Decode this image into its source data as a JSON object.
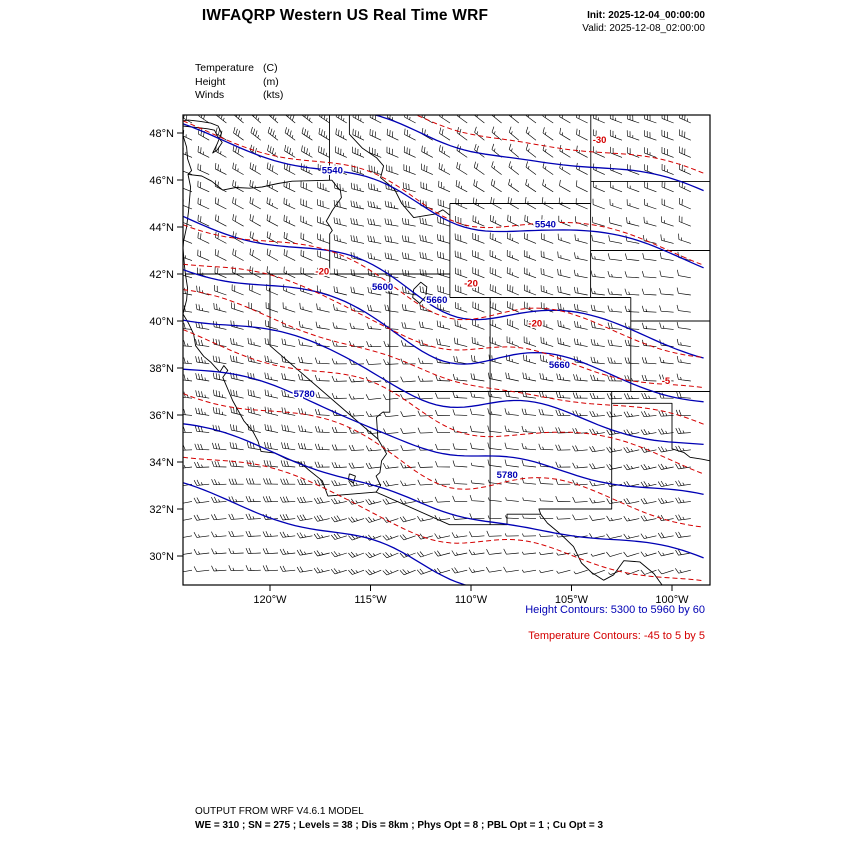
{
  "header": {
    "title": "IWFAQRP Western US Real Time WRF",
    "init_label": "Init: 2025-12-04_00:00:00",
    "valid_label": "Valid: 2025-12-08_02:00:00"
  },
  "fields": [
    {
      "name": "Temperature",
      "unit": "(C)"
    },
    {
      "name": "Height",
      "unit": "(m)"
    },
    {
      "name": "Winds",
      "unit": "(kts)"
    }
  ],
  "legend": {
    "height": "Height Contours: 5300 to 5960 by 60",
    "temperature": "Temperature Contours: -45 to 5 by 5"
  },
  "footer": {
    "line1": "OUTPUT FROM WRF V4.6.1 MODEL",
    "line2": "WE = 310 ; SN = 275 ; Levels = 38 ; Dis = 8km ; Phys Opt = 8 ; PBL Opt = 1 ; Cu Opt = 3"
  },
  "colors": {
    "height_contour": "#0000b4",
    "temperature_contour": "#d40000",
    "map_outline": "#000000",
    "wind_barb": "#000000"
  },
  "chart_data": {
    "type": "contour-map",
    "region": "Western US",
    "projection": {
      "lon_min": -124.33,
      "lon_max": -98.11,
      "lat_min": 28.77,
      "lat_max": 48.77
    },
    "axes": {
      "lat_ticks": [
        {
          "value": 48,
          "label": "48°N"
        },
        {
          "value": 46,
          "label": "46°N"
        },
        {
          "value": 44,
          "label": "44°N"
        },
        {
          "value": 42,
          "label": "42°N"
        },
        {
          "value": 40,
          "label": "40°N"
        },
        {
          "value": 38,
          "label": "38°N"
        },
        {
          "value": 36,
          "label": "36°N"
        },
        {
          "value": 34,
          "label": "34°N"
        },
        {
          "value": 32,
          "label": "32°N"
        },
        {
          "value": 30,
          "label": "30°N"
        }
      ],
      "lon_ticks": [
        {
          "value": -120,
          "label": "120°W"
        },
        {
          "value": -115,
          "label": "115°W"
        },
        {
          "value": -110,
          "label": "110°W"
        },
        {
          "value": -105,
          "label": "105°W"
        },
        {
          "value": -100,
          "label": "100°W"
        }
      ]
    },
    "contour_shape": {
      "slope_deg_per_lon": 0.22,
      "trough_center_lon": -111,
      "trough_width": 3.2,
      "trough_amp": 1.0,
      "wiggle_amp": 0.3
    },
    "height_contours": {
      "units": "m",
      "min": 5300,
      "max": 5960,
      "interval": 60,
      "levels": [
        {
          "value": 5480,
          "lat_at_center": 48.3
        },
        {
          "value": 5540,
          "lat_at_center": 45.3
        },
        {
          "value": 5600,
          "lat_at_center": 41.6
        },
        {
          "value": 5660,
          "lat_at_center": 39.6
        },
        {
          "value": 5720,
          "lat_at_center": 37.5
        },
        {
          "value": 5780,
          "lat_at_center": 35.2
        },
        {
          "value": 5840,
          "lat_at_center": 32.6
        },
        {
          "value": 5900,
          "lat_at_center": 30.0
        }
      ],
      "labels": [
        {
          "text": "5540",
          "lon": -116.9,
          "lat": 46.4
        },
        {
          "text": "5540",
          "lon": -106.3,
          "lat": 44.1
        },
        {
          "text": "5600",
          "lon": -114.4,
          "lat": 41.45
        },
        {
          "text": "5660",
          "lon": -111.7,
          "lat": 40.9
        },
        {
          "text": "5660",
          "lon": -105.6,
          "lat": 38.13
        },
        {
          "text": "5780",
          "lon": -118.3,
          "lat": 36.9
        },
        {
          "text": "5780",
          "lon": -108.2,
          "lat": 33.45
        }
      ]
    },
    "temperature_contours": {
      "units": "C",
      "min": -45,
      "max": 5,
      "interval": 5,
      "levels": [
        {
          "value": -30,
          "lat_at_center": 49.0
        },
        {
          "value": -25,
          "lat_at_center": 45.5
        },
        {
          "value": -20,
          "lat_at_center": 41.5
        },
        {
          "value": -15,
          "lat_at_center": 39.8
        },
        {
          "value": -10,
          "lat_at_center": 38.3
        },
        {
          "value": -5,
          "lat_at_center": 36.6
        },
        {
          "value": 0,
          "lat_at_center": 34.3
        },
        {
          "value": 5,
          "lat_at_center": 31.6
        }
      ],
      "labels": [
        {
          "text": "-30",
          "lon": -103.6,
          "lat": 47.7
        },
        {
          "text": "-20",
          "lon": -117.4,
          "lat": 42.1
        },
        {
          "text": "-20",
          "lon": -110.0,
          "lat": 41.6
        },
        {
          "text": "-20",
          "lon": -106.8,
          "lat": 39.9
        },
        {
          "text": "-5",
          "lon": -100.3,
          "lat": 37.45
        }
      ]
    },
    "wind_barbs": {
      "units": "kts",
      "grid_spacing_px": 17.2,
      "base_direction_deg": 302,
      "dir_lat_gradient": 2.3,
      "base_speed_kts": 27
    },
    "state_outlines": [
      [
        [
          -124.33,
          48.3
        ],
        [
          -123.5,
          48.22
        ],
        [
          -123.1,
          48.18
        ],
        [
          -122.76,
          48.12
        ],
        [
          -122.6,
          47.85
        ],
        [
          -122.38,
          47.6
        ],
        [
          -122.62,
          47.28
        ],
        [
          -122.85,
          47.15
        ],
        [
          -122.62,
          47.55
        ],
        [
          -122.42,
          48.0
        ],
        [
          -122.58,
          48.3
        ],
        [
          -122.95,
          48.42
        ],
        [
          -123.5,
          48.5
        ],
        [
          -124.05,
          48.55
        ],
        [
          -124.33,
          48.52
        ]
      ],
      [
        [
          -124.33,
          47.9
        ],
        [
          -124.15,
          47.4
        ],
        [
          -124.1,
          46.9
        ],
        [
          -123.9,
          46.4
        ],
        [
          -124.08,
          46.24
        ],
        [
          -123.95,
          45.7
        ],
        [
          -124.0,
          45.2
        ],
        [
          -124.05,
          44.7
        ],
        [
          -124.15,
          44.0
        ],
        [
          -124.3,
          43.4
        ],
        [
          -124.33,
          43.1
        ],
        [
          -124.3,
          42.8
        ],
        [
          -124.25,
          42.3
        ],
        [
          -124.21,
          42.0
        ],
        [
          -124.1,
          41.4
        ],
        [
          -124.15,
          40.9
        ],
        [
          -124.33,
          40.3
        ],
        [
          -124.05,
          39.9
        ],
        [
          -123.8,
          39.45
        ],
        [
          -123.7,
          38.95
        ],
        [
          -123.3,
          38.5
        ],
        [
          -122.95,
          38.25
        ],
        [
          -122.5,
          37.82
        ],
        [
          -122.3,
          38.1
        ],
        [
          -122.1,
          37.9
        ],
        [
          -122.35,
          37.6
        ],
        [
          -122.05,
          37.0
        ],
        [
          -121.85,
          36.6
        ],
        [
          -121.3,
          35.75
        ],
        [
          -120.85,
          35.3
        ],
        [
          -120.6,
          34.9
        ],
        [
          -120.45,
          34.45
        ],
        [
          -119.75,
          34.38
        ],
        [
          -119.15,
          34.12
        ],
        [
          -118.45,
          33.95
        ],
        [
          -118.1,
          33.68
        ],
        [
          -117.4,
          33.2
        ],
        [
          -117.12,
          32.55
        ]
      ],
      [
        [
          -117.12,
          32.55
        ],
        [
          -114.72,
          32.72
        ],
        [
          -111.07,
          31.33
        ],
        [
          -108.21,
          31.33
        ],
        [
          -108.21,
          31.78
        ],
        [
          -106.53,
          31.78
        ],
        [
          -106.2,
          31.4
        ],
        [
          -105.5,
          30.9
        ],
        [
          -104.9,
          30.4
        ],
        [
          -104.5,
          29.7
        ],
        [
          -104.0,
          29.3
        ],
        [
          -103.4,
          28.97
        ],
        [
          -102.9,
          29.2
        ],
        [
          -102.4,
          29.8
        ],
        [
          -101.6,
          29.75
        ],
        [
          -100.9,
          29.25
        ],
        [
          -100.5,
          28.77
        ]
      ],
      [
        [
          -124.08,
          46.24
        ],
        [
          -123.4,
          46.17
        ],
        [
          -122.9,
          45.95
        ],
        [
          -122.35,
          45.57
        ],
        [
          -121.7,
          45.68
        ],
        [
          -121.0,
          45.65
        ],
        [
          -120.4,
          45.7
        ],
        [
          -119.6,
          45.85
        ],
        [
          -118.9,
          45.95
        ],
        [
          -116.92,
          45.99
        ]
      ],
      [
        [
          -116.92,
          45.99
        ],
        [
          -116.7,
          45.75
        ],
        [
          -116.5,
          45.55
        ],
        [
          -116.45,
          45.25
        ],
        [
          -116.7,
          44.95
        ],
        [
          -116.9,
          44.7
        ],
        [
          -117.1,
          44.4
        ],
        [
          -117.2,
          44.25
        ],
        [
          -117.0,
          44.0
        ],
        [
          -116.9,
          43.85
        ],
        [
          -117.03,
          43.7
        ],
        [
          -117.03,
          42.0
        ]
      ],
      [
        [
          -117.04,
          48.77
        ],
        [
          -117.04,
          45.99
        ]
      ],
      [
        [
          -124.21,
          42.0
        ],
        [
          -111.05,
          42.0
        ]
      ],
      [
        [
          -120.0,
          42.0
        ],
        [
          -120.0,
          38.95
        ],
        [
          -114.63,
          34.98
        ],
        [
          -114.2,
          34.35
        ],
        [
          -114.45,
          34.05
        ],
        [
          -114.53,
          33.55
        ],
        [
          -114.72,
          33.4
        ],
        [
          -114.5,
          33.0
        ],
        [
          -114.72,
          32.72
        ]
      ],
      [
        [
          -114.04,
          37.0
        ],
        [
          -114.04,
          36.12
        ],
        [
          -114.4,
          36.12
        ],
        [
          -114.7,
          35.9
        ],
        [
          -114.63,
          34.98
        ]
      ],
      [
        [
          -114.04,
          42.0
        ],
        [
          -114.04,
          37.0
        ]
      ],
      [
        [
          -114.04,
          37.0
        ],
        [
          -98.11,
          37.0
        ]
      ],
      [
        [
          -116.05,
          48.77
        ],
        [
          -116.05,
          47.95
        ],
        [
          -115.4,
          47.35
        ],
        [
          -114.7,
          46.95
        ],
        [
          -114.35,
          46.6
        ],
        [
          -114.5,
          46.1
        ],
        [
          -113.8,
          45.6
        ],
        [
          -113.45,
          45.0
        ],
        [
          -112.85,
          44.4
        ],
        [
          -111.8,
          44.55
        ],
        [
          -111.4,
          44.73
        ],
        [
          -111.05,
          44.5
        ]
      ],
      [
        [
          -111.05,
          45.0
        ],
        [
          -111.05,
          41.0
        ]
      ],
      [
        [
          -111.05,
          45.0
        ],
        [
          -104.04,
          45.0
        ]
      ],
      [
        [
          -104.04,
          48.77
        ],
        [
          -104.04,
          45.0
        ]
      ],
      [
        [
          -104.04,
          45.94
        ],
        [
          -98.11,
          45.94
        ]
      ],
      [
        [
          -104.05,
          43.0
        ],
        [
          -98.11,
          43.0
        ]
      ],
      [
        [
          -104.05,
          45.0
        ],
        [
          -104.05,
          41.0
        ]
      ],
      [
        [
          -111.05,
          41.0
        ],
        [
          -102.05,
          41.0
        ]
      ],
      [
        [
          -102.05,
          40.0
        ],
        [
          -98.11,
          40.0
        ]
      ],
      [
        [
          -102.05,
          41.0
        ],
        [
          -102.05,
          37.0
        ]
      ],
      [
        [
          -109.05,
          41.0
        ],
        [
          -109.05,
          37.0
        ]
      ],
      [
        [
          -109.05,
          37.0
        ],
        [
          -109.05,
          31.33
        ]
      ],
      [
        [
          -103.0,
          37.0
        ],
        [
          -103.0,
          32.0
        ],
        [
          -106.62,
          32.0
        ],
        [
          -106.53,
          31.78
        ]
      ],
      [
        [
          -103.0,
          36.5
        ],
        [
          -100.0,
          36.5
        ],
        [
          -100.0,
          34.56
        ],
        [
          -99.4,
          34.4
        ],
        [
          -99.1,
          34.2
        ],
        [
          -98.5,
          34.12
        ],
        [
          -98.11,
          34.05
        ]
      ],
      [
        [
          -112.85,
          41.35
        ],
        [
          -112.5,
          41.65
        ],
        [
          -112.2,
          41.45
        ],
        [
          -112.25,
          41.05
        ],
        [
          -112.55,
          40.75
        ],
        [
          -112.9,
          41.0
        ],
        [
          -112.85,
          41.35
        ]
      ],
      [
        [
          -116.05,
          33.5
        ],
        [
          -115.75,
          33.4
        ],
        [
          -115.85,
          33.1
        ],
        [
          -116.1,
          33.25
        ],
        [
          -116.05,
          33.5
        ]
      ]
    ]
  }
}
